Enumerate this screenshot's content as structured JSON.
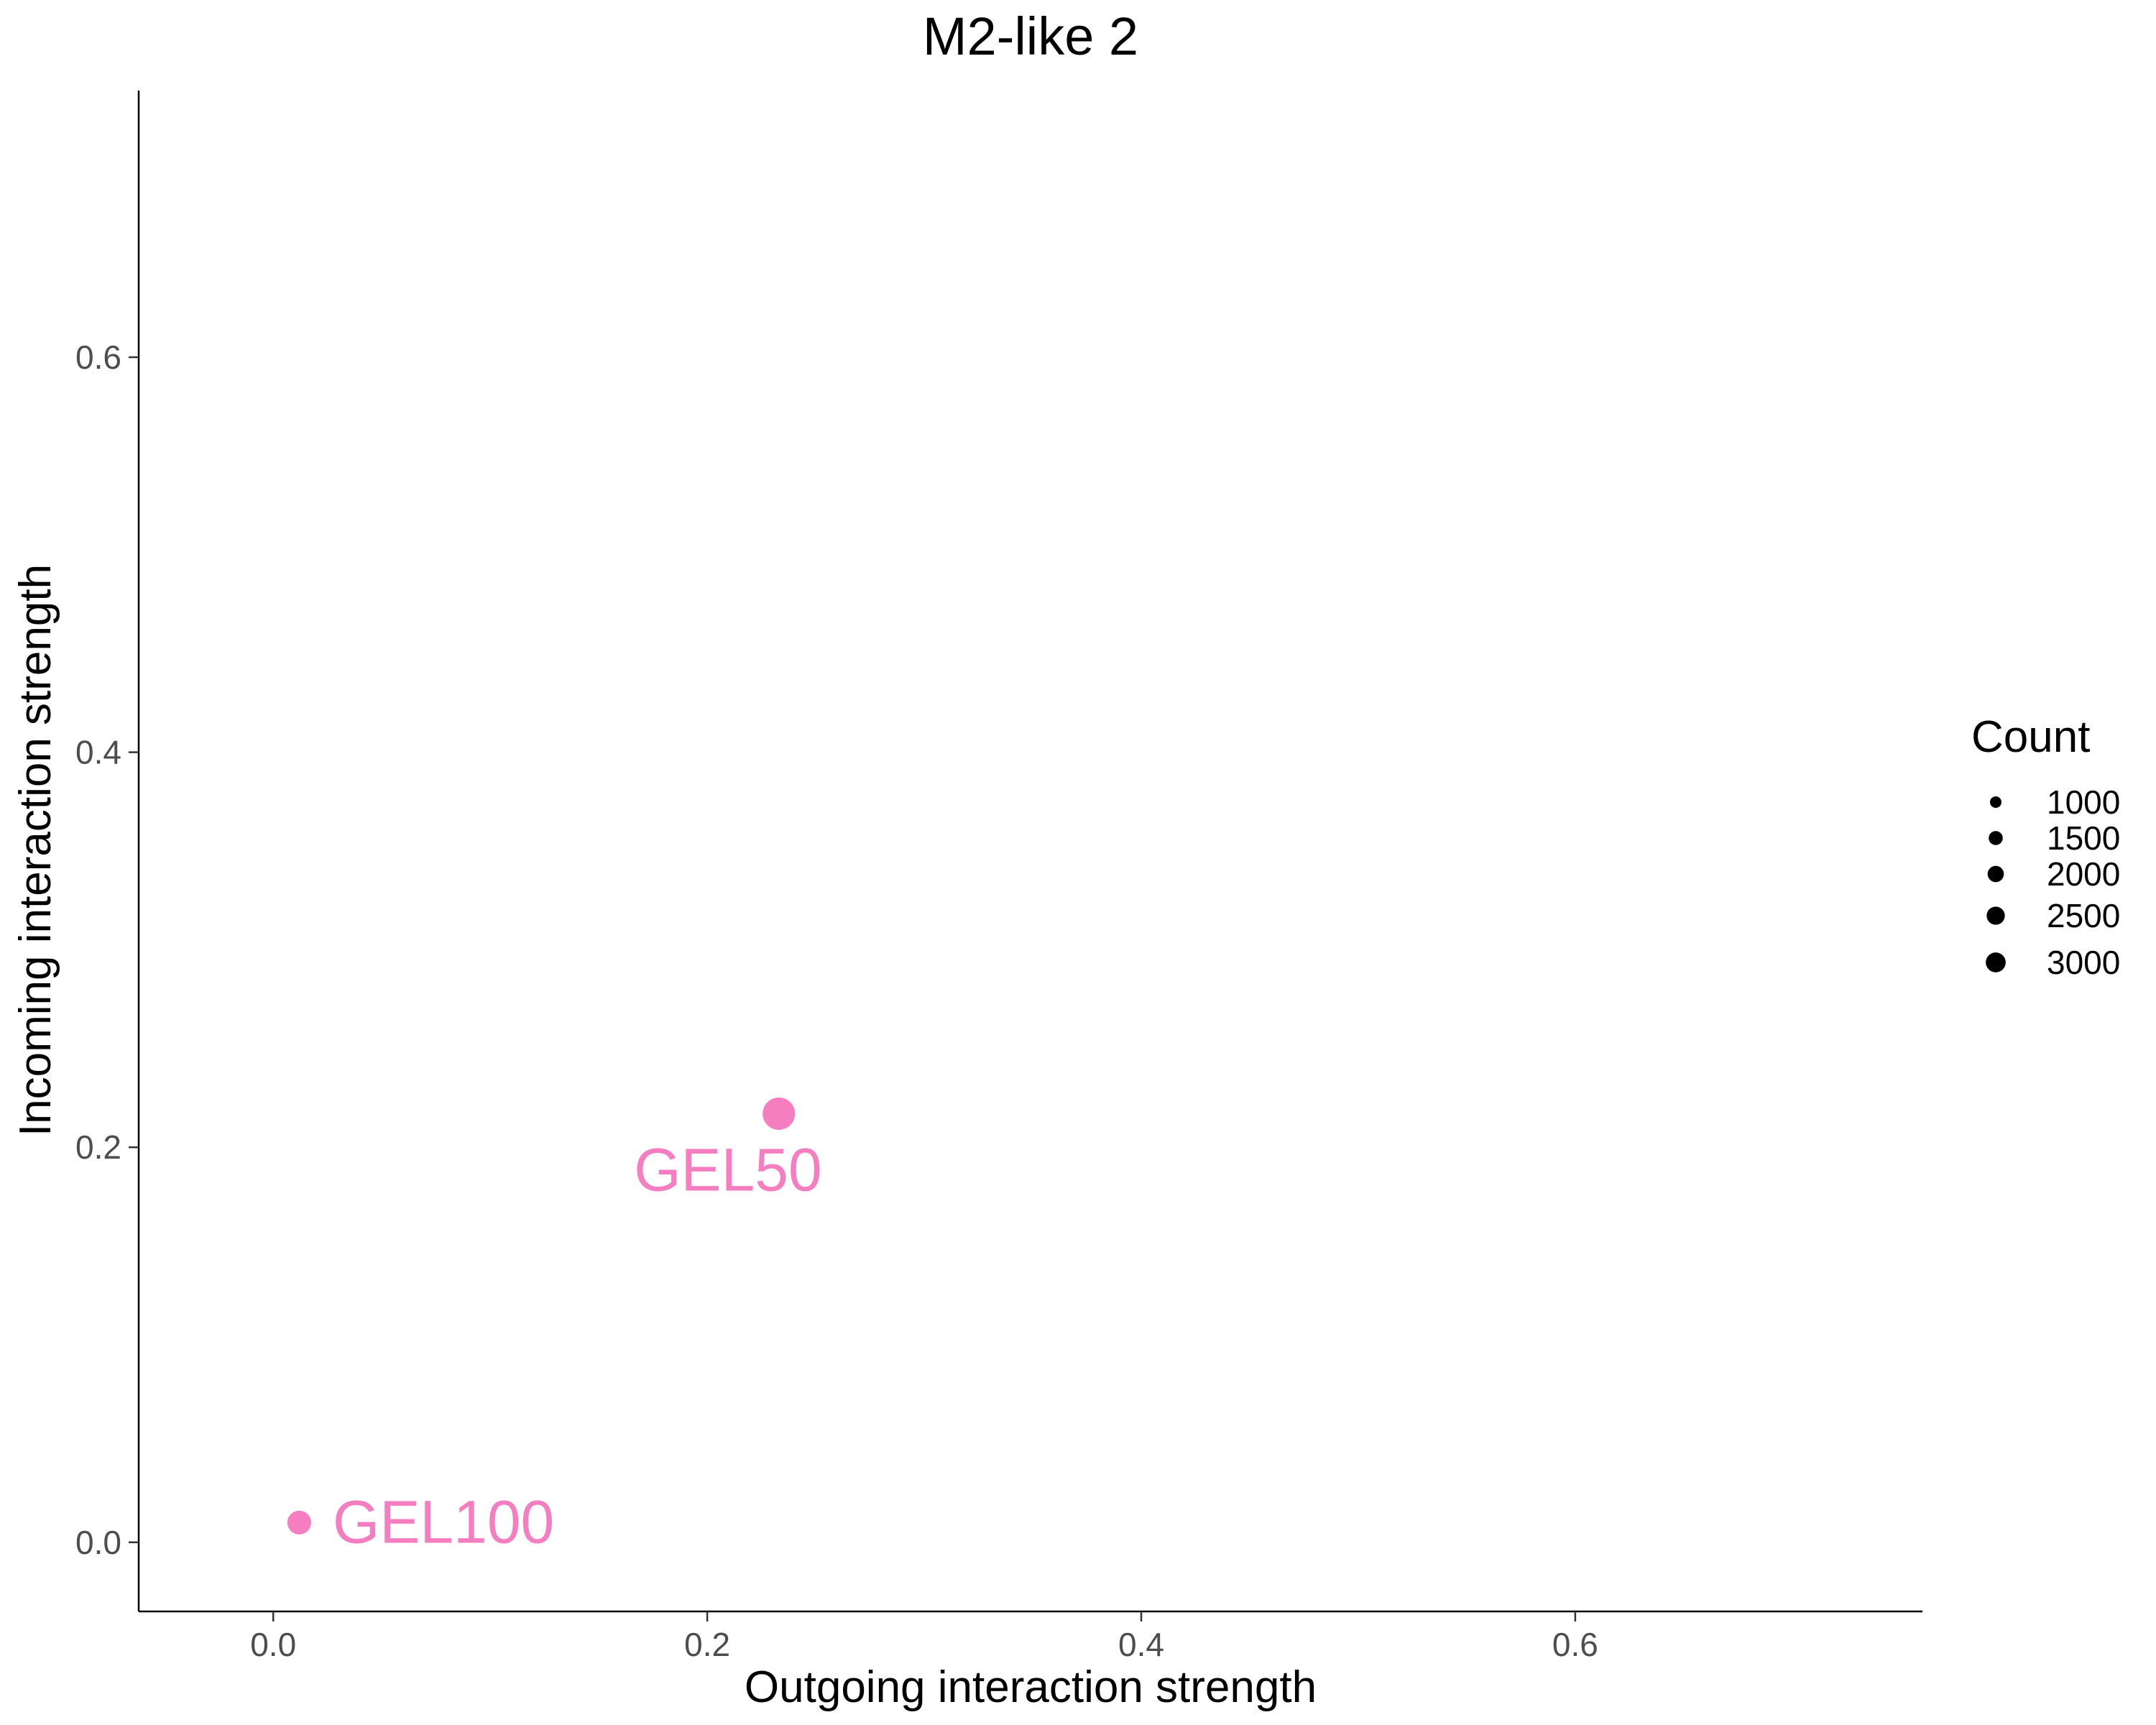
{
  "chart_data": {
    "type": "scatter",
    "title": "M2-like 2",
    "xlabel": "Outgoing interaction strength",
    "ylabel": "Incoming interaction strength",
    "xlim": [
      -0.062,
      0.76
    ],
    "ylim": [
      -0.035,
      0.735
    ],
    "xticks": [
      {
        "value": 0.0,
        "label": "0.0"
      },
      {
        "value": 0.2,
        "label": "0.2"
      },
      {
        "value": 0.4,
        "label": "0.4"
      },
      {
        "value": 0.6,
        "label": "0.6"
      }
    ],
    "yticks": [
      {
        "value": 0.0,
        "label": "0.0"
      },
      {
        "value": 0.2,
        "label": "0.2"
      },
      {
        "value": 0.4,
        "label": "0.4"
      },
      {
        "value": 0.6,
        "label": "0.6"
      }
    ],
    "grid": false,
    "points": [
      {
        "label": "GEL100",
        "x": 0.012,
        "y": 0.01,
        "count": 1300,
        "color": "#F47EBF",
        "label_position": "right"
      },
      {
        "label": "GEL50",
        "x": 0.233,
        "y": 0.217,
        "count": 2400,
        "color": "#F47EBF",
        "label_position": "below-left"
      }
    ],
    "legend": {
      "title": "Count",
      "placement": "right",
      "entries": [
        {
          "label": "1000",
          "value": 1000
        },
        {
          "label": "1500",
          "value": 1500
        },
        {
          "label": "2000",
          "value": 2000
        },
        {
          "label": "2500",
          "value": 2500
        },
        {
          "label": "3000",
          "value": 3000
        }
      ],
      "color": "#000000"
    }
  }
}
